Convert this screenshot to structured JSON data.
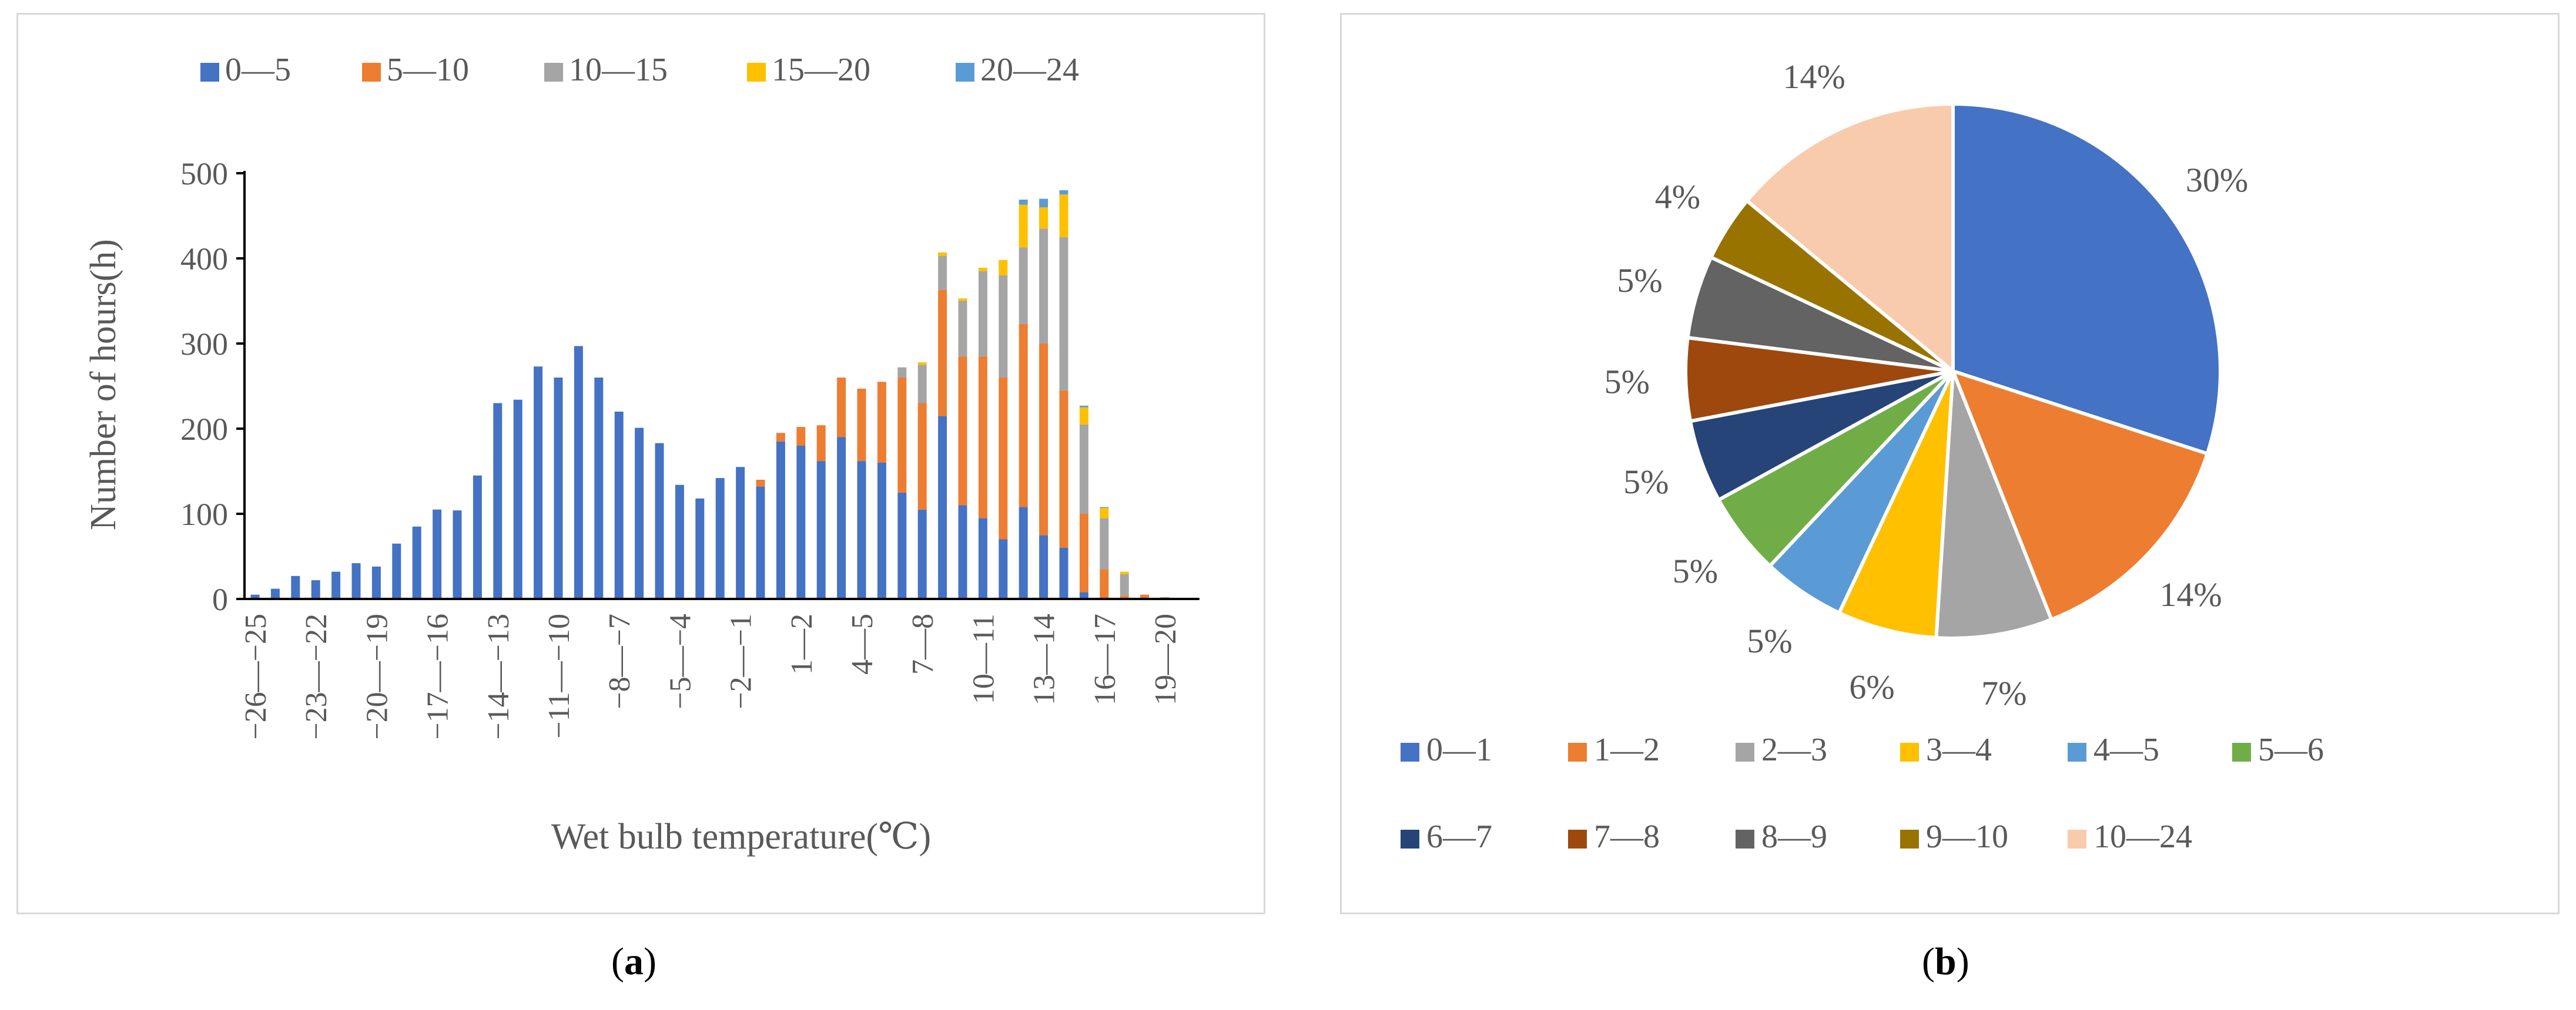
{
  "captions": {
    "a": "a",
    "b": "b"
  },
  "chart_data": [
    {
      "type": "bar",
      "stacked": true,
      "xlabel": "Wet bulb temperature(℃)",
      "ylabel": "Number of hours(h)",
      "ylim": [
        0,
        500
      ],
      "yticks": [
        "0",
        "100",
        "200",
        "300",
        "400",
        "500"
      ],
      "legend_position": "top",
      "categories": [
        "−26—−25",
        "−25—−24",
        "−24—−23",
        "−23—−22",
        "−22—−21",
        "−21—−20",
        "−20—−19",
        "−19—−18",
        "−18—−17",
        "−17—−16",
        "−16—−15",
        "−15—−14",
        "−14—−13",
        "−13—−12",
        "−12—−11",
        "−11—−10",
        "−10—−9",
        "−9—−8",
        "−8—−7",
        "−7—−6",
        "−6—−5",
        "−5—−4",
        "−4—−3",
        "−3—−2",
        "−2—−1",
        "−1—0",
        "0—1",
        "1—2",
        "2—3",
        "3—4",
        "4—5",
        "5—6",
        "6—7",
        "7—8",
        "8—9",
        "9—10",
        "10—11",
        "11—12",
        "12—13",
        "13—14",
        "14—15",
        "15—16",
        "16—17",
        "17—18",
        "18—19",
        "19—20",
        "20—21"
      ],
      "tick_labels": [
        "−26—−25",
        "−23—−22",
        "−20—−19",
        "−17—−16",
        "−14—−13",
        "−11—−10",
        "−8—−7",
        "−5—−4",
        "−2—−1",
        "1—2",
        "4—5",
        "7—8",
        "10—11",
        "13—14",
        "16—17",
        "19—20"
      ],
      "series": [
        {
          "name": "0—5",
          "color": "#4472c4",
          "values": [
            5,
            12,
            27,
            22,
            32,
            42,
            38,
            65,
            85,
            105,
            104,
            145,
            230,
            234,
            273,
            260,
            297,
            260,
            220,
            201,
            183,
            134,
            118,
            142,
            155,
            132,
            185,
            180,
            162,
            190,
            162,
            160,
            125,
            105,
            215,
            110,
            95,
            70,
            108,
            75,
            60,
            8,
            0,
            0,
            0,
            0,
            0
          ]
        },
        {
          "name": "5—10",
          "color": "#ed7d31",
          "values": [
            0,
            0,
            0,
            0,
            0,
            0,
            0,
            0,
            0,
            0,
            0,
            0,
            0,
            0,
            0,
            0,
            0,
            0,
            0,
            0,
            0,
            0,
            0,
            0,
            0,
            8,
            10,
            22,
            42,
            70,
            85,
            95,
            135,
            125,
            148,
            175,
            190,
            190,
            215,
            225,
            185,
            92,
            35,
            4,
            5,
            2,
            0
          ]
        },
        {
          "name": "10—15",
          "color": "#a5a5a5",
          "values": [
            0,
            0,
            0,
            0,
            0,
            0,
            0,
            0,
            0,
            0,
            0,
            0,
            0,
            0,
            0,
            0,
            0,
            0,
            0,
            0,
            0,
            0,
            0,
            0,
            0,
            0,
            0,
            0,
            0,
            0,
            0,
            0,
            12,
            45,
            40,
            65,
            100,
            120,
            90,
            135,
            180,
            105,
            60,
            25,
            0,
            0,
            0
          ]
        },
        {
          "name": "15—20",
          "color": "#ffc000",
          "values": [
            0,
            0,
            0,
            0,
            0,
            0,
            0,
            0,
            0,
            0,
            0,
            0,
            0,
            0,
            0,
            0,
            0,
            0,
            0,
            0,
            0,
            0,
            0,
            0,
            0,
            0,
            0,
            0,
            0,
            0,
            0,
            0,
            0,
            3,
            4,
            3,
            4,
            18,
            50,
            25,
            50,
            20,
            12,
            3,
            0,
            0,
            0
          ]
        },
        {
          "name": "20—24",
          "color": "#5b9bd5",
          "values": [
            0,
            0,
            0,
            0,
            0,
            0,
            0,
            0,
            0,
            0,
            0,
            0,
            0,
            0,
            0,
            0,
            0,
            0,
            0,
            0,
            0,
            0,
            0,
            0,
            0,
            0,
            0,
            0,
            0,
            0,
            0,
            0,
            0,
            0,
            0,
            0,
            0,
            0,
            6,
            10,
            5,
            2,
            1,
            0,
            0,
            0,
            0
          ]
        }
      ]
    },
    {
      "type": "pie",
      "legend_position": "bottom",
      "slices": [
        {
          "label": "0—1",
          "value": 30,
          "display": "30%",
          "color": "#4472c4"
        },
        {
          "label": "1—2",
          "value": 14,
          "display": "14%",
          "color": "#ed7d31"
        },
        {
          "label": "2—3",
          "value": 7,
          "display": "7%",
          "color": "#a5a5a5"
        },
        {
          "label": "3—4",
          "value": 6,
          "display": "6%",
          "color": "#ffc000"
        },
        {
          "label": "4—5",
          "value": 5,
          "display": "5%",
          "color": "#5b9bd5"
        },
        {
          "label": "5—6",
          "value": 5,
          "display": "5%",
          "color": "#70ad47"
        },
        {
          "label": "6—7",
          "value": 5,
          "display": "5%",
          "color": "#264478"
        },
        {
          "label": "7—8",
          "value": 5,
          "display": "5%",
          "color": "#9e480e"
        },
        {
          "label": "8—9",
          "value": 5,
          "display": "5%",
          "color": "#636363"
        },
        {
          "label": "9—10",
          "value": 4,
          "display": "4%",
          "color": "#997300"
        },
        {
          "label": "10—24",
          "value": 14,
          "display": "14%",
          "color": "#f8cbad"
        }
      ]
    }
  ]
}
